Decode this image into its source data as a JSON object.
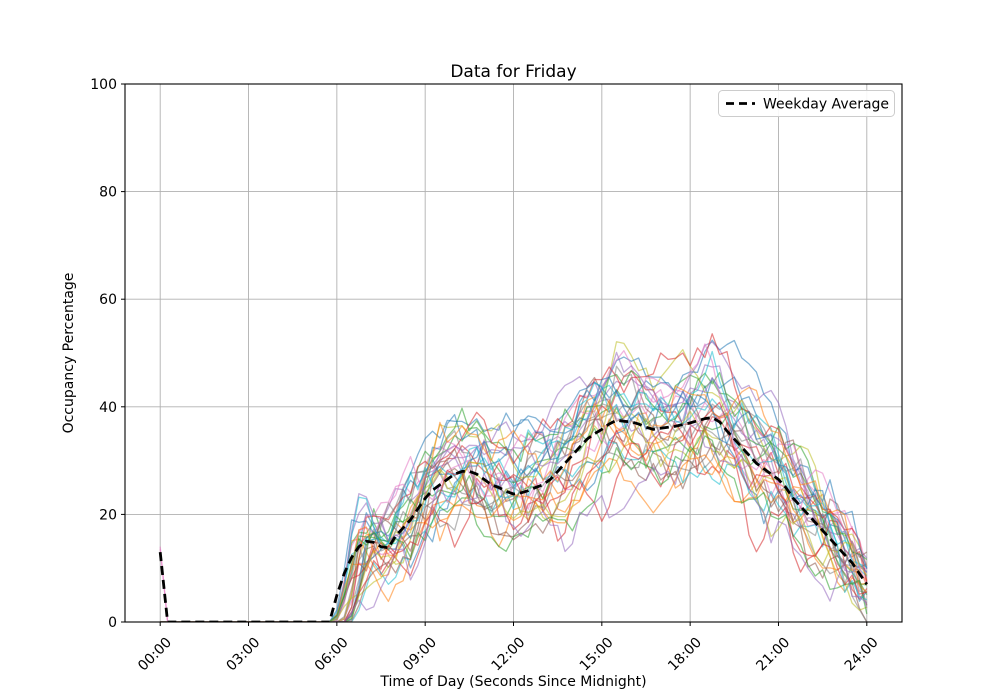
{
  "figure": {
    "title": "Data for Friday",
    "xlabel": "Time of Day (Seconds Since Midnight)",
    "ylabel": "Occupancy Percentage",
    "background_color": "#ffffff"
  },
  "chart_data": {
    "type": "line",
    "title": "Data for Friday",
    "xlabel": "Time of Day (Seconds Since Midnight)",
    "ylabel": "Occupancy Percentage",
    "grid": true,
    "grid_color": "#b0b0b0",
    "x_tick_hours": [
      0,
      3,
      6,
      9,
      12,
      15,
      18,
      21,
      24
    ],
    "x_tick_labels": [
      "00:00",
      "03:00",
      "06:00",
      "09:00",
      "12:00",
      "15:00",
      "18:00",
      "21:00",
      "24:00"
    ],
    "y_ticks": [
      0,
      20,
      40,
      60,
      80,
      100
    ],
    "ylim": [
      0,
      100
    ],
    "xlim_hours": [
      -1.2,
      25.2
    ],
    "legend": {
      "position": "upper right",
      "entries": [
        {
          "label": "Weekday Average",
          "style": "dashed",
          "color": "#000000"
        }
      ]
    },
    "average_series": {
      "name": "Weekday Average",
      "color": "#000000",
      "dashed": true,
      "step_hours": 0.25,
      "start_hour": 0,
      "values": [
        13,
        0,
        0,
        0,
        0,
        0,
        0,
        0,
        0,
        0,
        0,
        0,
        0,
        0,
        0,
        0,
        0,
        0,
        0,
        0,
        0,
        0,
        0,
        0,
        5,
        9,
        12,
        14,
        15,
        14.8,
        14,
        13.8,
        16,
        17.5,
        19,
        21,
        23,
        24.5,
        25.5,
        26.5,
        27.5,
        28,
        28,
        27.5,
        26.5,
        25.5,
        25,
        24.3,
        23.8,
        24,
        24.4,
        25,
        25.5,
        26.5,
        28,
        29.5,
        31,
        32.5,
        34,
        35,
        35.8,
        36.8,
        37.5,
        37.3,
        37.2,
        36.8,
        36.2,
        35.8,
        36,
        36.2,
        36.4,
        36.7,
        37,
        37.4,
        37.8,
        38,
        37.2,
        35.5,
        34,
        32.5,
        31,
        29.5,
        28.5,
        27.5,
        26.5,
        25,
        23,
        21.5,
        20,
        18.5,
        17,
        15.5,
        14,
        12.5,
        11,
        9,
        7
      ]
    },
    "day_series": {
      "description": "Approximately 35 individual-day occupancy traces scattered around the weekday average; exact per-day values are not readable from the plot and are reconstructed procedurally.",
      "approximate_reconstruction": true,
      "count": 35,
      "alpha": 0.55,
      "line_width": 1.3,
      "palette": [
        "#1f77b4",
        "#ff7f0e",
        "#2ca02c",
        "#d62728",
        "#9467bd",
        "#8c564b",
        "#e377c2",
        "#7f7f7f",
        "#bcbd22",
        "#17becf"
      ],
      "seed": 42,
      "value_range": [
        0,
        60
      ],
      "rise_window_hours": [
        5.55,
        6.5
      ],
      "midnight_spike_lines": [
        6,
        26
      ],
      "midnight_spike_value": 13
    }
  }
}
